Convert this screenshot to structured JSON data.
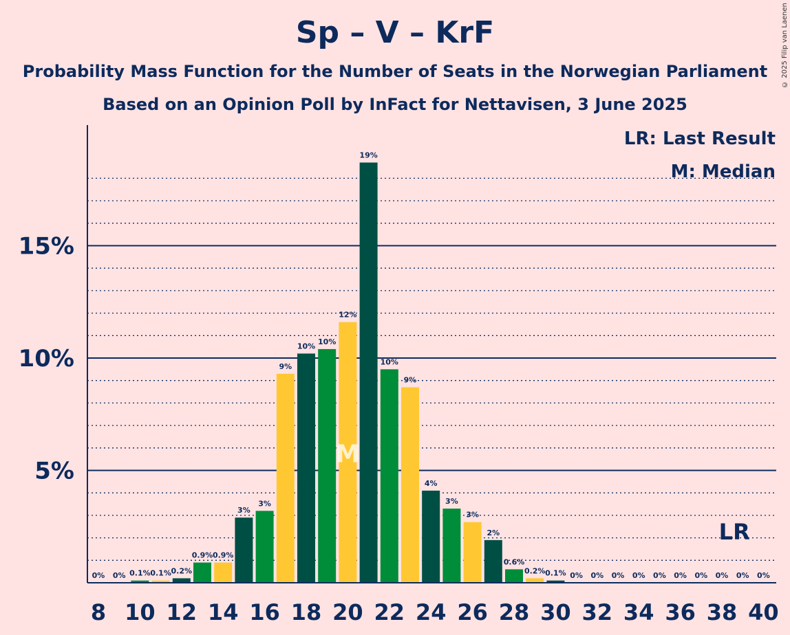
{
  "header": {
    "title": "Sp – V – KrF",
    "subtitle": "Probability Mass Function for the Number of Seats in the Norwegian Parliament",
    "subtitle2": "Based on an Opinion Poll by InFact for Nettavisen, 3 June 2025",
    "copyright": "© 2025 Filip van Laenen"
  },
  "legend": {
    "lr": "LR: Last Result",
    "m": "M: Median"
  },
  "markers": {
    "median_label": "M",
    "median_seat": 20,
    "last_result_label": "LR",
    "last_result_seat": 39
  },
  "colors": {
    "dark": "#004f44",
    "green": "#008d3a",
    "yellow": "#ffc833",
    "axis": "#0d2a5c",
    "background": "#ffe3e3"
  },
  "chart_data": {
    "type": "bar",
    "x": [
      8,
      9,
      10,
      11,
      12,
      13,
      14,
      15,
      16,
      17,
      18,
      19,
      20,
      21,
      22,
      23,
      24,
      25,
      26,
      27,
      28,
      29,
      30,
      31,
      32,
      33,
      34,
      35,
      36,
      37,
      38,
      39,
      40
    ],
    "values": [
      0,
      0,
      0.1,
      0.1,
      0.2,
      0.9,
      0.9,
      2.9,
      3.2,
      9.3,
      10.2,
      10.4,
      11.6,
      18.7,
      9.5,
      8.7,
      4.1,
      3.3,
      2.7,
      1.9,
      0.6,
      0.2,
      0.1,
      0,
      0,
      0,
      0,
      0,
      0,
      0,
      0,
      0,
      0
    ],
    "labels": [
      "0%",
      "0%",
      "0.1%",
      "0.1%",
      "0.2%",
      "0.9%",
      "0.9%",
      "3%",
      "3%",
      "9%",
      "10%",
      "10%",
      "12%",
      "19%",
      "10%",
      "9%",
      "4%",
      "3%",
      "3%",
      "2%",
      "0.6%",
      "0.2%",
      "0.1%",
      "0%",
      "0%",
      "0%",
      "0%",
      "0%",
      "0%",
      "0%",
      "0%",
      "0%",
      "0%"
    ],
    "xticks": [
      "8",
      "10",
      "12",
      "14",
      "16",
      "18",
      "20",
      "22",
      "24",
      "26",
      "28",
      "30",
      "32",
      "34",
      "36",
      "38",
      "40"
    ],
    "yticks": [
      "5%",
      "10%",
      "15%"
    ],
    "ytick_values": [
      5,
      10,
      15
    ],
    "ylim": [
      0,
      20
    ],
    "grid": true
  }
}
